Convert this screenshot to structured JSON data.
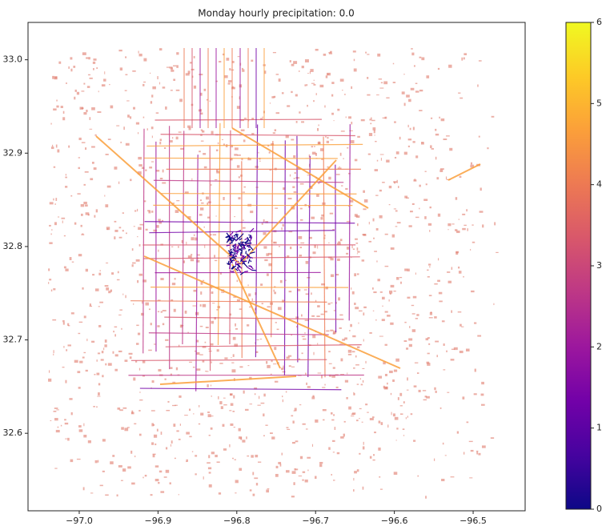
{
  "chart_data": {
    "type": "map",
    "title": "Monday hourly precipitation: 0.0",
    "xlim": [
      -97.065,
      -96.434
    ],
    "ylim": [
      32.517,
      33.04
    ],
    "xticks": [
      {
        "value": -97.0,
        "label": "−97.0"
      },
      {
        "value": -96.9,
        "label": "−96.9"
      },
      {
        "value": -96.8,
        "label": "−96.8"
      },
      {
        "value": -96.7,
        "label": "−96.7"
      },
      {
        "value": -96.6,
        "label": "−96.6"
      },
      {
        "value": -96.5,
        "label": "−96.5"
      }
    ],
    "yticks": [
      {
        "value": 32.6,
        "label": "32.6"
      },
      {
        "value": 32.7,
        "label": "32.7"
      },
      {
        "value": 32.8,
        "label": "32.8"
      },
      {
        "value": 32.9,
        "label": "32.9"
      },
      {
        "value": 33.0,
        "label": "33.0"
      }
    ],
    "colorbar": {
      "colormap": "plasma",
      "lim": [
        0,
        6
      ],
      "ticks": [
        0,
        1,
        2,
        3,
        4,
        5,
        6
      ]
    }
  }
}
